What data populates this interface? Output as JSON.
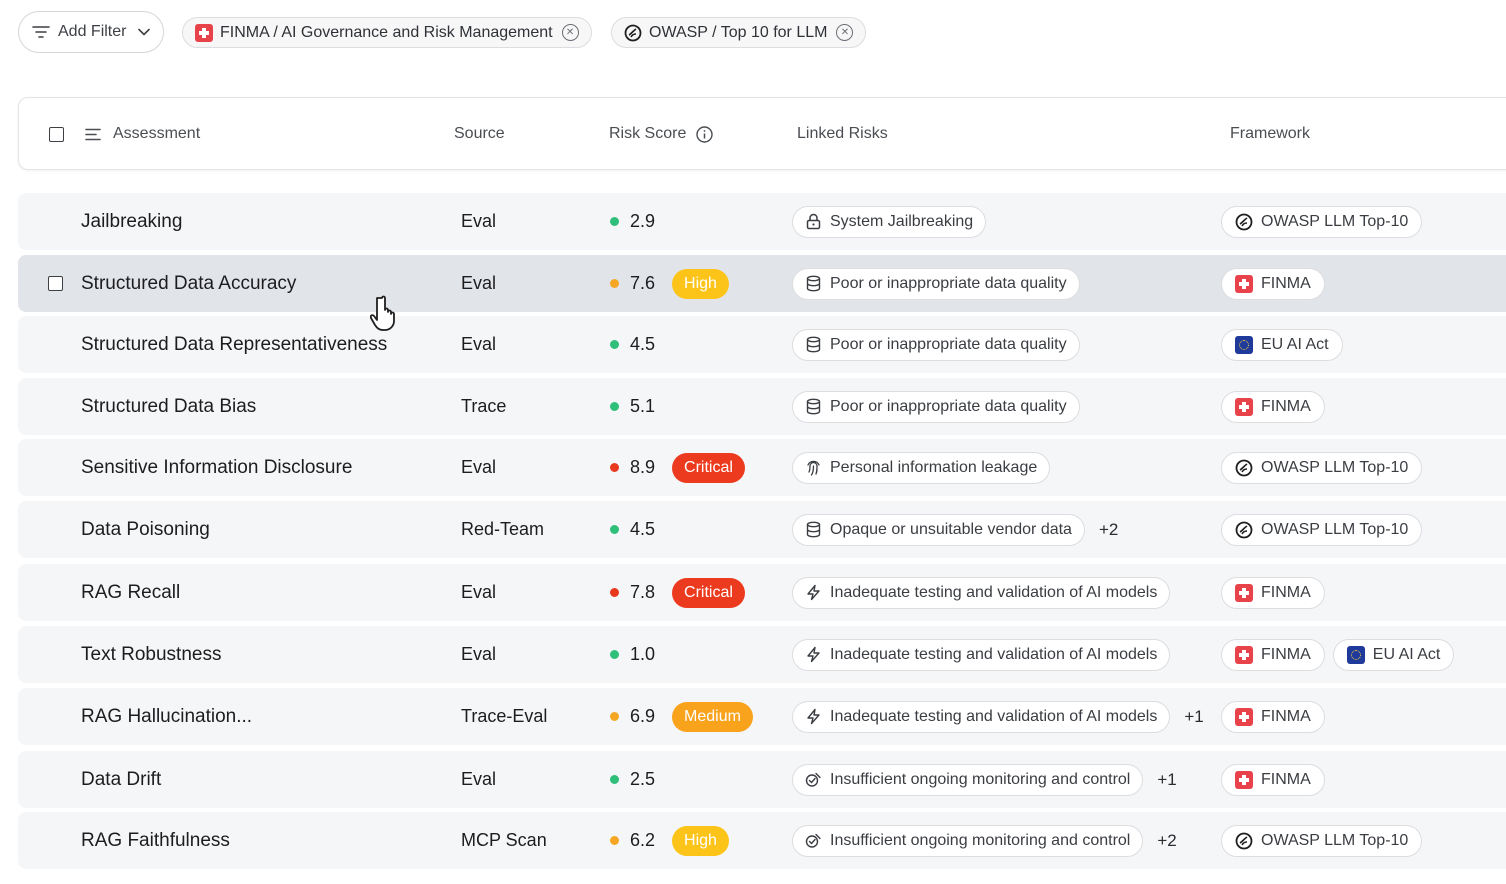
{
  "filters": {
    "add_filter_label": "Add Filter",
    "chips": [
      {
        "label": "FINMA / AI Governance and Risk Management",
        "icon": "swiss-flag-icon"
      },
      {
        "label": "OWASP / Top 10 for LLM",
        "icon": "owasp-icon"
      }
    ]
  },
  "table": {
    "headers": {
      "assessment": "Assessment",
      "source": "Source",
      "risk_score": "Risk Score",
      "linked_risks": "Linked Risks",
      "framework": "Framework"
    },
    "rows": [
      {
        "assessment": "Jailbreaking",
        "source": "Eval",
        "score": "2.9",
        "level": "",
        "risk": "System Jailbreaking",
        "risk_icon": "lock-icon",
        "more": "",
        "frameworks": [
          "OWASP LLM Top-10"
        ]
      },
      {
        "assessment": "Structured Data Accuracy",
        "source": "Eval",
        "score": "7.6",
        "level": "High",
        "risk": "Poor or inappropriate data quality",
        "risk_icon": "database-icon",
        "more": "",
        "frameworks": [
          "FINMA"
        ]
      },
      {
        "assessment": "Structured Data Representativeness",
        "source": "Eval",
        "score": "4.5",
        "level": "",
        "risk": "Poor or inappropriate data quality",
        "risk_icon": "database-icon",
        "more": "",
        "frameworks": [
          "EU AI Act"
        ]
      },
      {
        "assessment": "Structured Data Bias",
        "source": "Trace",
        "score": "5.1",
        "level": "",
        "risk": "Poor or inappropriate data quality",
        "risk_icon": "database-icon",
        "more": "",
        "frameworks": [
          "FINMA"
        ]
      },
      {
        "assessment": "Sensitive Information Disclosure",
        "source": "Eval",
        "score": "8.9",
        "level": "Critical",
        "risk": "Personal information leakage",
        "risk_icon": "fingerprint-icon",
        "more": "",
        "frameworks": [
          "OWASP LLM Top-10"
        ]
      },
      {
        "assessment": "Data Poisoning",
        "source": "Red-Team",
        "score": "4.5",
        "level": "",
        "risk": "Opaque or unsuitable vendor data",
        "risk_icon": "database-icon",
        "more": "+2",
        "frameworks": [
          "OWASP LLM Top-10"
        ]
      },
      {
        "assessment": "RAG Recall",
        "source": "Eval",
        "score": "7.8",
        "level": "Critical",
        "risk": "Inadequate testing and validation of AI models",
        "risk_icon": "bolt-icon",
        "more": "",
        "frameworks": [
          "FINMA"
        ]
      },
      {
        "assessment": "Text Robustness",
        "source": "Eval",
        "score": "1.0",
        "level": "",
        "risk": "Inadequate testing and validation of AI models",
        "risk_icon": "bolt-icon",
        "more": "",
        "frameworks": [
          "FINMA",
          "EU AI Act"
        ]
      },
      {
        "assessment": "RAG Hallucination...",
        "source": "Trace-Eval",
        "score": "6.9",
        "level": "Medium",
        "risk": "Inadequate testing and validation of AI models",
        "risk_icon": "bolt-icon",
        "more": "+1",
        "frameworks": [
          "FINMA"
        ]
      },
      {
        "assessment": "Data Drift",
        "source": "Eval",
        "score": "2.5",
        "level": "",
        "risk": "Insufficient ongoing monitoring and control",
        "risk_icon": "monitor-icon",
        "more": "+1",
        "frameworks": [
          "FINMA"
        ]
      },
      {
        "assessment": "RAG Faithfulness",
        "source": "MCP Scan",
        "score": "6.2",
        "level": "High",
        "risk": "Insufficient ongoing monitoring and control",
        "risk_icon": "monitor-icon",
        "more": "+2",
        "frameworks": [
          "OWASP LLM Top-10"
        ]
      }
    ]
  },
  "colors": {
    "low": "#2fbf7a",
    "medium": "#f5a623",
    "high": "#fbbf24",
    "critical": "#e8391f",
    "badge_high": "#fcc419",
    "badge_medium": "#f9a21b",
    "badge_critical": "#ec3a1e"
  }
}
